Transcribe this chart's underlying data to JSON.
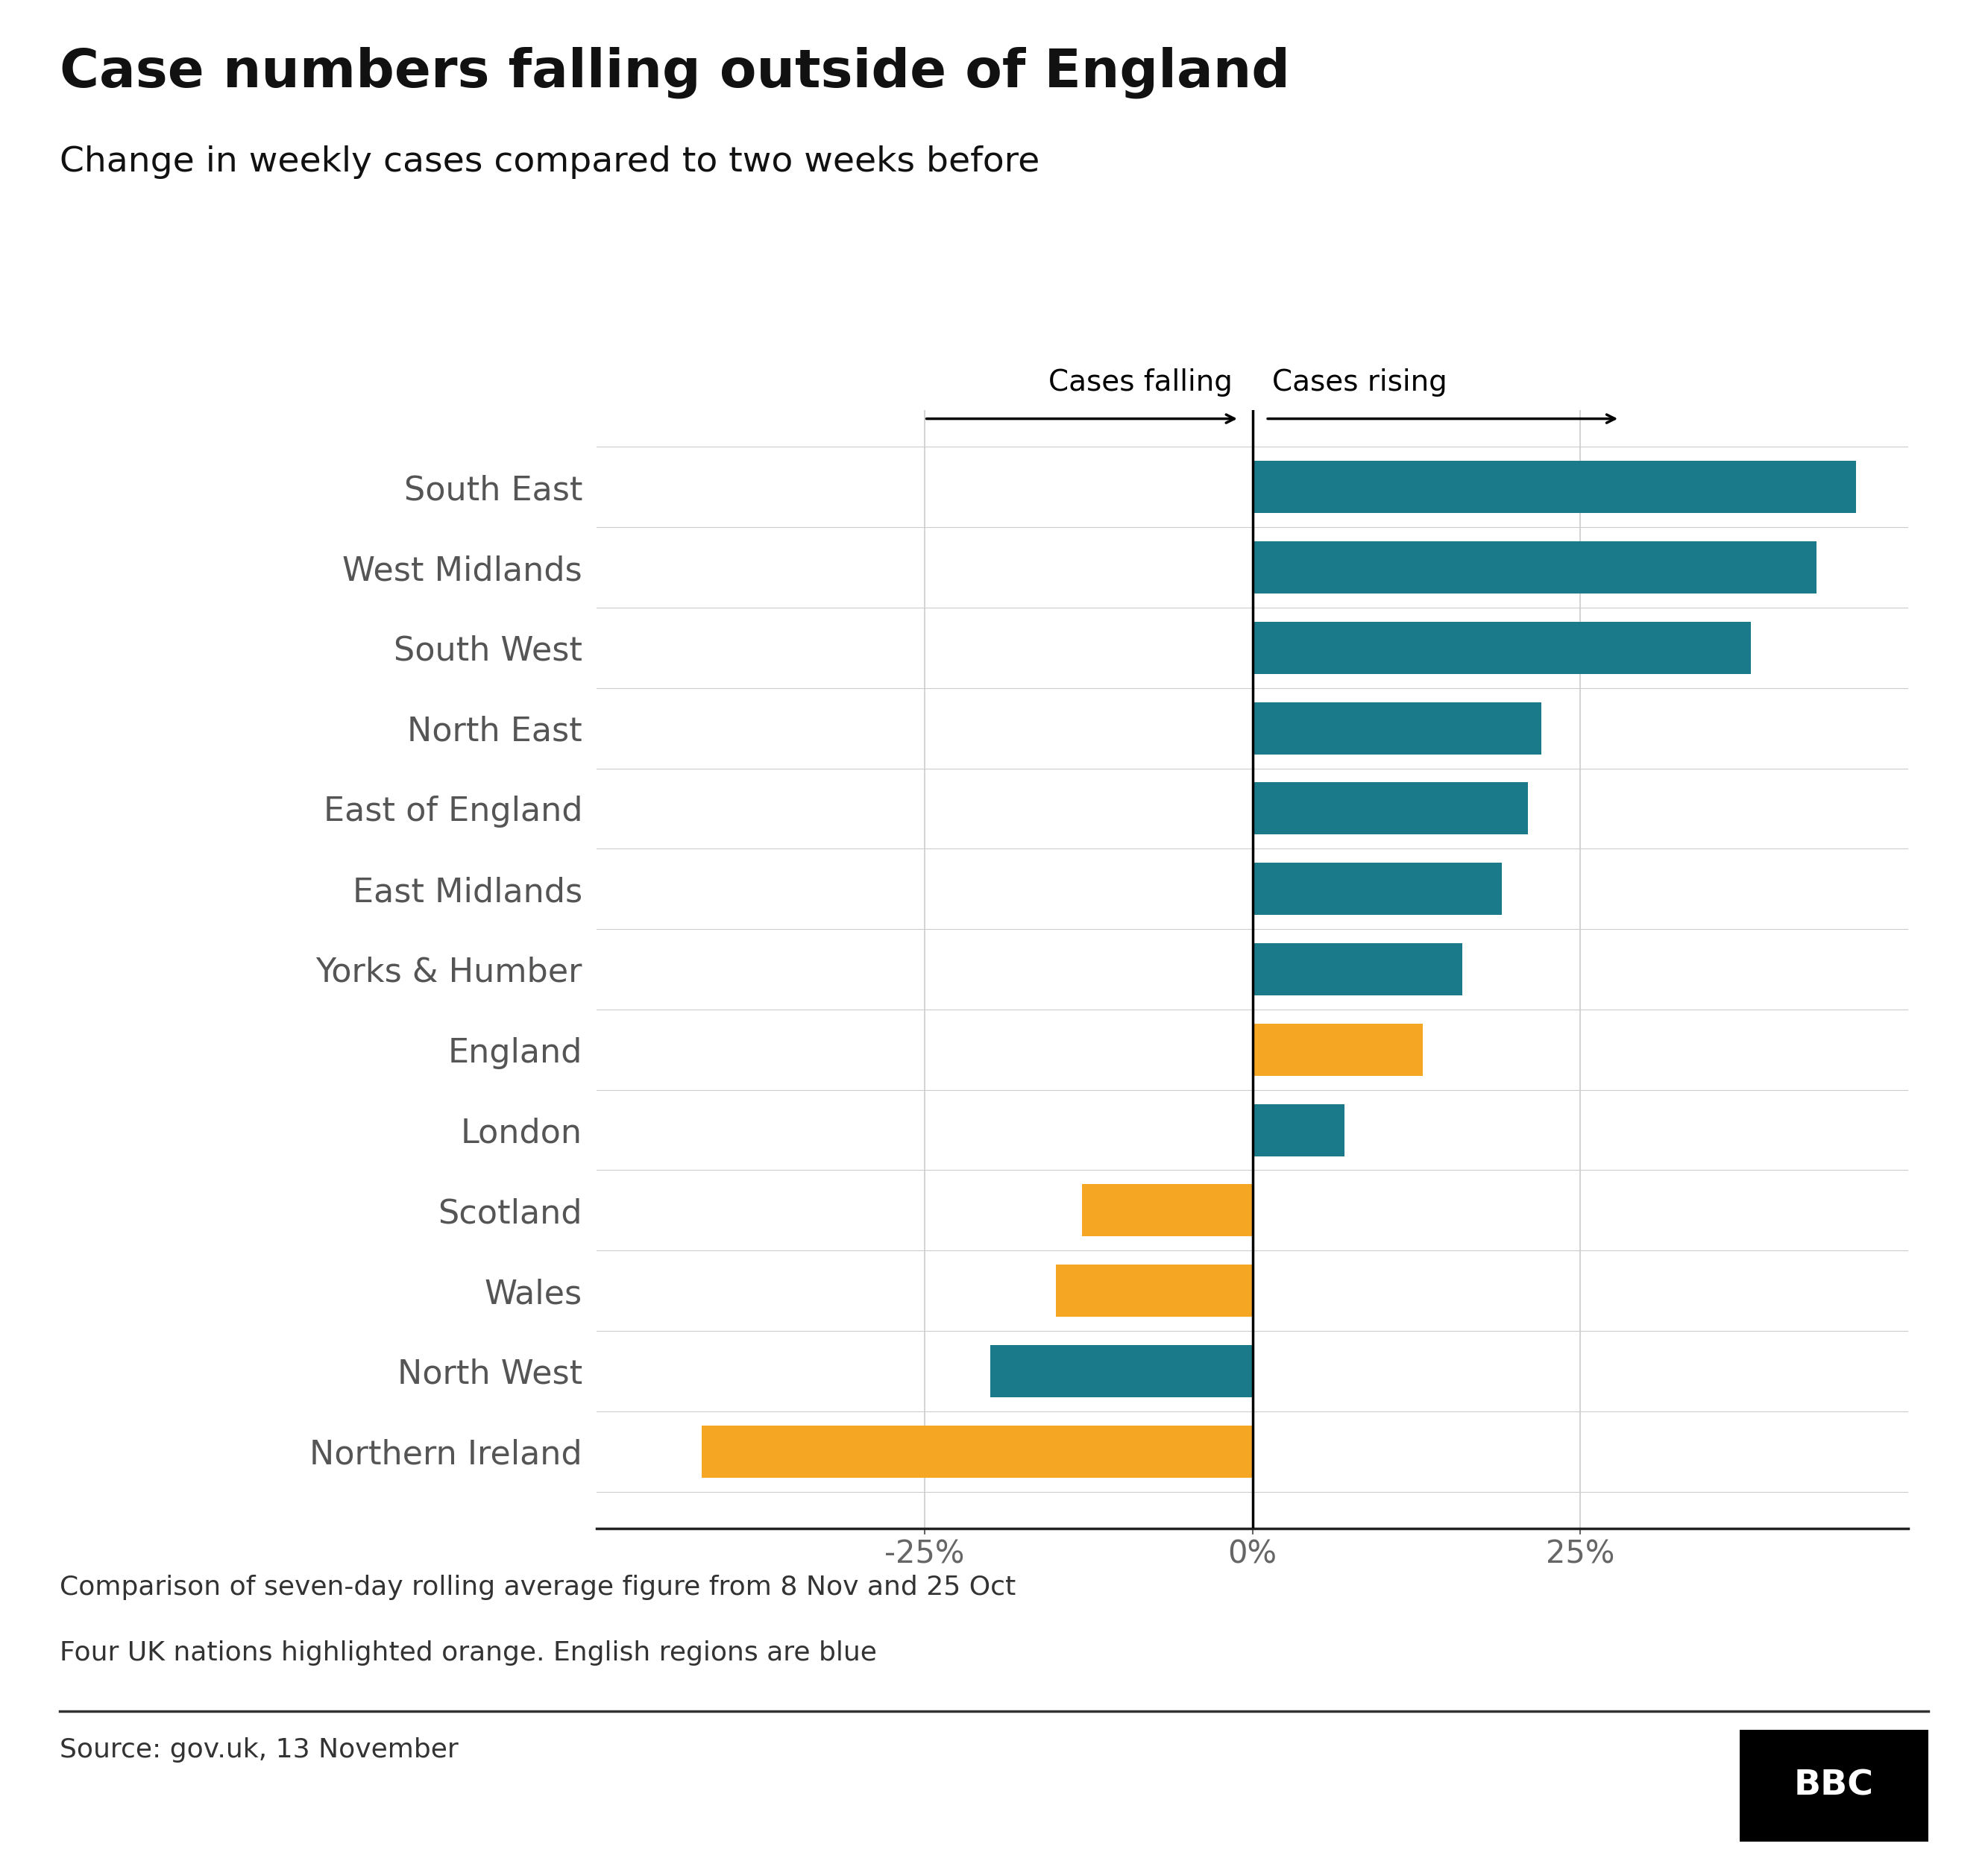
{
  "title": "Case numbers falling outside of England",
  "subtitle": "Change in weekly cases compared to two weeks before",
  "categories": [
    "South East",
    "West Midlands",
    "South West",
    "North East",
    "East of England",
    "East Midlands",
    "Yorks & Humber",
    "England",
    "London",
    "Scotland",
    "Wales",
    "North West",
    "Northern Ireland"
  ],
  "values": [
    46,
    43,
    38,
    22,
    21,
    19,
    16,
    13,
    7,
    -13,
    -15,
    -20,
    -42
  ],
  "colors": [
    "#1a7a8a",
    "#1a7a8a",
    "#1a7a8a",
    "#1a7a8a",
    "#1a7a8a",
    "#1a7a8a",
    "#1a7a8a",
    "#f5a623",
    "#1a7a8a",
    "#f5a623",
    "#f5a623",
    "#1a7a8a",
    "#f5a623"
  ],
  "xlim": [
    -50,
    50
  ],
  "xticks": [
    -25,
    0,
    25
  ],
  "xticklabels": [
    "-25%",
    "0%",
    "25%"
  ],
  "cases_falling_label": "Cases falling",
  "cases_rising_label": "Cases rising",
  "annotation_text1": "Comparison of seven-day rolling average figure from 8 Nov and 25 Oct",
  "annotation_text2": "Four UK nations highlighted orange. English regions are blue",
  "source_text": "Source: gov.uk, 13 November",
  "title_color": "#111111",
  "subtitle_color": "#111111",
  "label_color": "#555555",
  "tick_color": "#666666",
  "bg_color": "#ffffff",
  "grid_color": "#cccccc",
  "bar_height": 0.65,
  "title_fontsize": 52,
  "subtitle_fontsize": 34,
  "annotation_fontsize": 26,
  "source_fontsize": 26,
  "tick_fontsize": 30,
  "label_fontsize": 32,
  "arrow_label_fontsize": 28
}
